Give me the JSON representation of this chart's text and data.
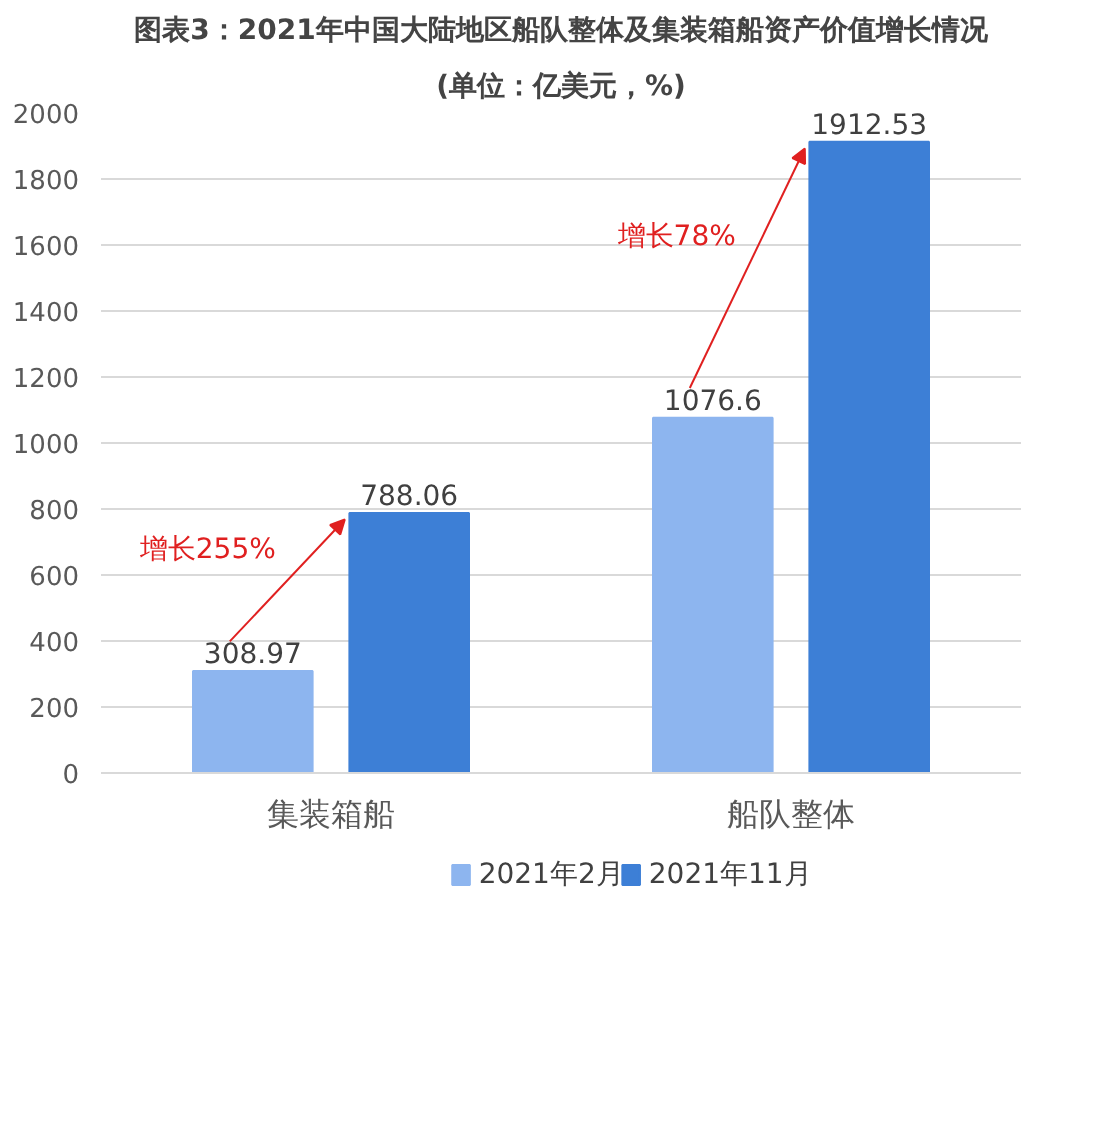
{
  "chart_data": {
    "type": "bar",
    "title": "图表3：2021年中国大陆地区船队整体及集装箱船资产价值增长情况",
    "subtitle": "(单位：亿美元，%)",
    "categories": [
      "集装箱船",
      "船队整体"
    ],
    "series": [
      {
        "name": "2021年2月",
        "color": "#8db5ef",
        "values": [
          308.97,
          1076.6
        ]
      },
      {
        "name": "2021年11月",
        "color": "#3d7fd6",
        "values": [
          788.06,
          1912.53
        ]
      }
    ],
    "ylim": [
      0,
      2000
    ],
    "yticks": [
      0,
      200,
      400,
      600,
      800,
      1000,
      1200,
      1400,
      1600,
      1800,
      2000
    ],
    "grid": "y",
    "legend": "bottom",
    "data_labels": true,
    "annotations": [
      "增长255%",
      "增长78%"
    ]
  }
}
